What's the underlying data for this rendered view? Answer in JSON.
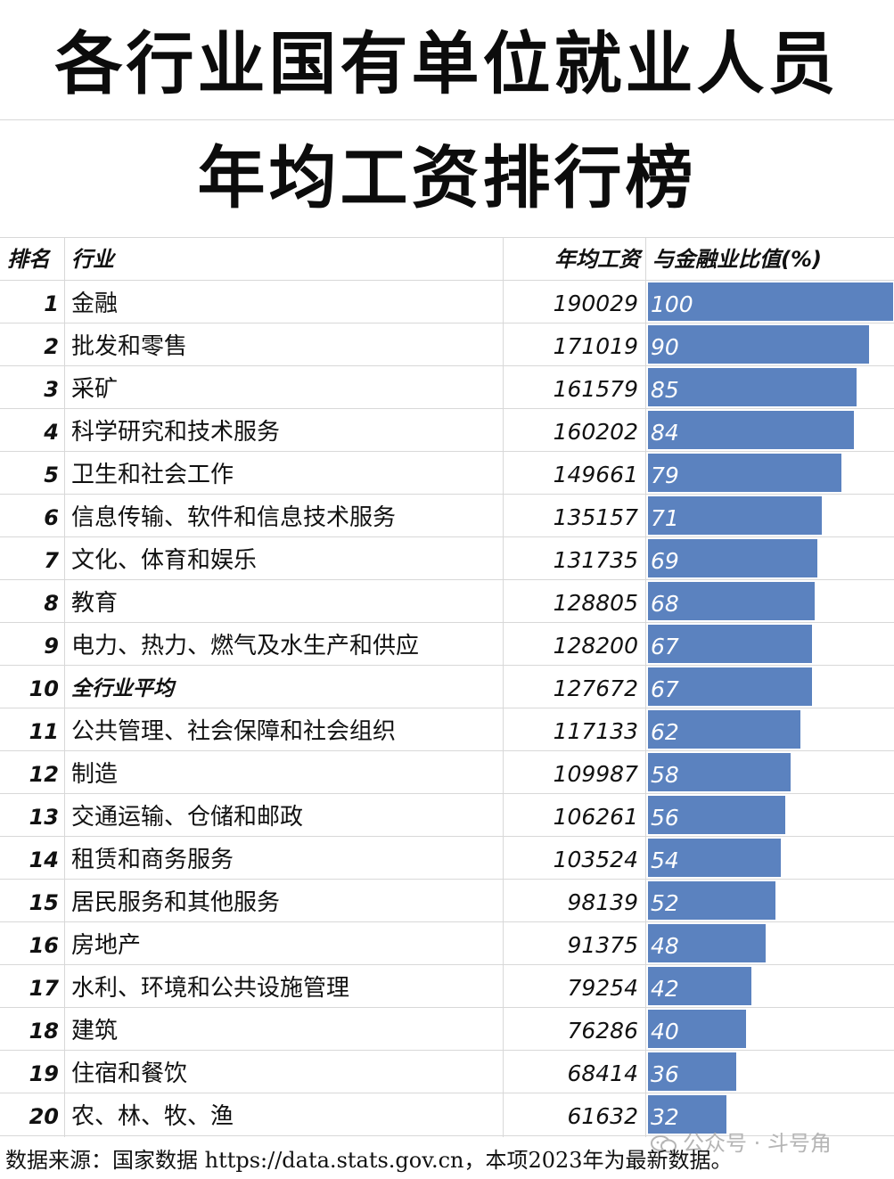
{
  "title": {
    "line1": "各行业国有单位就业人员",
    "line2": "年均工资排行榜"
  },
  "table": {
    "headers": {
      "rank": "排名",
      "industry": "行业",
      "salary": "年均工资",
      "ratio": "与金融业比值(%)"
    },
    "rows": [
      {
        "rank": "1",
        "industry": "金融",
        "salary": "190029",
        "ratio": "100"
      },
      {
        "rank": "2",
        "industry": "批发和零售",
        "salary": "171019",
        "ratio": "90"
      },
      {
        "rank": "3",
        "industry": "采矿",
        "salary": "161579",
        "ratio": "85"
      },
      {
        "rank": "4",
        "industry": "科学研究和技术服务",
        "salary": "160202",
        "ratio": "84"
      },
      {
        "rank": "5",
        "industry": "卫生和社会工作",
        "salary": "149661",
        "ratio": "79"
      },
      {
        "rank": "6",
        "industry": "信息传输、软件和信息技术服务",
        "salary": "135157",
        "ratio": "71"
      },
      {
        "rank": "7",
        "industry": "文化、体育和娱乐",
        "salary": "131735",
        "ratio": "69"
      },
      {
        "rank": "8",
        "industry": "教育",
        "salary": "128805",
        "ratio": "68"
      },
      {
        "rank": "9",
        "industry": "电力、热力、燃气及水生产和供应",
        "salary": "128200",
        "ratio": "67"
      },
      {
        "rank": "10",
        "industry": "全行业平均",
        "salary": "127672",
        "ratio": "67",
        "emphasis": true
      },
      {
        "rank": "11",
        "industry": "公共管理、社会保障和社会组织",
        "salary": "117133",
        "ratio": "62"
      },
      {
        "rank": "12",
        "industry": "制造",
        "salary": "109987",
        "ratio": "58"
      },
      {
        "rank": "13",
        "industry": "交通运输、仓储和邮政",
        "salary": "106261",
        "ratio": "56"
      },
      {
        "rank": "14",
        "industry": "租赁和商务服务",
        "salary": "103524",
        "ratio": "54"
      },
      {
        "rank": "15",
        "industry": "居民服务和其他服务",
        "salary": "98139",
        "ratio": "52"
      },
      {
        "rank": "16",
        "industry": "房地产",
        "salary": "91375",
        "ratio": "48"
      },
      {
        "rank": "17",
        "industry": "水利、环境和公共设施管理",
        "salary": "79254",
        "ratio": "42"
      },
      {
        "rank": "18",
        "industry": "建筑",
        "salary": "76286",
        "ratio": "40"
      },
      {
        "rank": "19",
        "industry": "住宿和餐饮",
        "salary": "68414",
        "ratio": "36"
      },
      {
        "rank": "20",
        "industry": "农、林、牧、渔",
        "salary": "61632",
        "ratio": "32"
      }
    ]
  },
  "chart_data": {
    "type": "bar",
    "title": "各行业国有单位就业人员年均工资排行榜",
    "categories": [
      "金融",
      "批发和零售",
      "采矿",
      "科学研究和技术服务",
      "卫生和社会工作",
      "信息传输、软件和信息技术服务",
      "文化、体育和娱乐",
      "教育",
      "电力、热力、燃气及水生产和供应",
      "全行业平均",
      "公共管理、社会保障和社会组织",
      "制造",
      "交通运输、仓储和邮政",
      "租赁和商务服务",
      "居民服务和其他服务",
      "房地产",
      "水利、环境和公共设施管理",
      "建筑",
      "住宿和餐饮",
      "农、林、牧、渔"
    ],
    "series": [
      {
        "name": "年均工资",
        "values": [
          190029,
          171019,
          161579,
          160202,
          149661,
          135157,
          131735,
          128805,
          128200,
          127672,
          117133,
          109987,
          106261,
          103524,
          98139,
          91375,
          79254,
          76286,
          68414,
          61632
        ]
      },
      {
        "name": "与金融业比值(%)",
        "values": [
          100,
          90,
          85,
          84,
          79,
          71,
          69,
          68,
          67,
          67,
          62,
          58,
          56,
          54,
          52,
          48,
          42,
          40,
          36,
          32
        ]
      }
    ],
    "orientation": "horizontal",
    "bar_color": "#5b82bf",
    "xlim": [
      0,
      100
    ]
  },
  "footer": {
    "source": "数据来源：国家数据 https://data.stats.gov.cn，本项2023年为最新数据。"
  },
  "watermark": {
    "text": "公众号 · 斗号角",
    "icon": "wechat-icon"
  }
}
